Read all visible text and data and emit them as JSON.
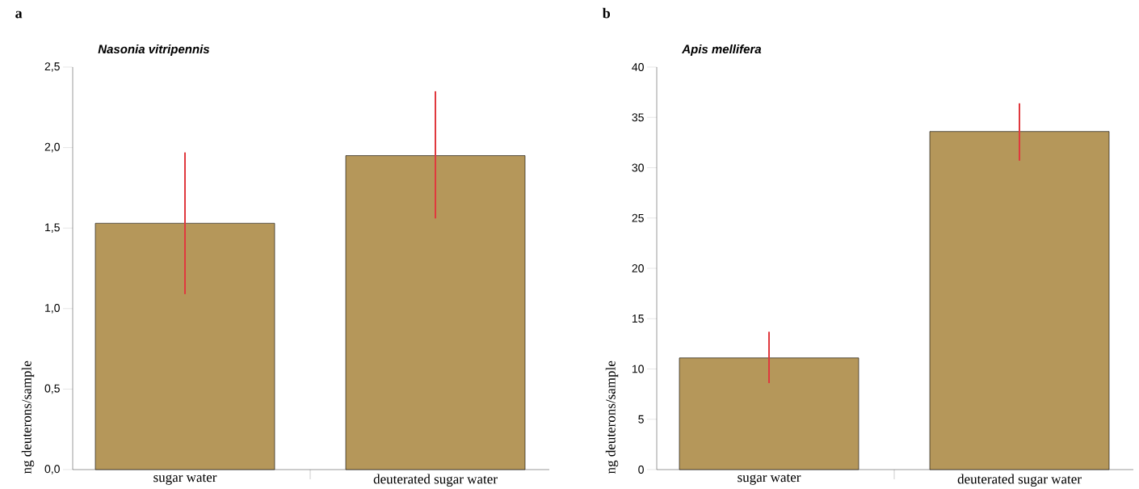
{
  "chart_data": [
    {
      "type": "bar",
      "title": "Nasonia vitripennis",
      "ylabel": "ng deuterons/sample",
      "categories": [
        "sugar water",
        "deuterated sugar water"
      ],
      "values": [
        1.53,
        1.95
      ],
      "errors": [
        [
          1.09,
          1.97
        ],
        [
          1.56,
          2.35
        ]
      ],
      "color": "#b5975a",
      "ylim": [
        0,
        2.5
      ],
      "yticks": [
        {
          "value": 0,
          "label": "0,0"
        },
        {
          "value": 0.5,
          "label": "0,5"
        },
        {
          "value": 1.0,
          "label": "1,0"
        },
        {
          "value": 1.5,
          "label": "1,5"
        },
        {
          "value": 2.0,
          "label": "2,0"
        },
        {
          "value": 2.5,
          "label": "2,5"
        }
      ],
      "annotations": [
        "a"
      ]
    },
    {
      "type": "bar",
      "title": "Apis mellifera",
      "ylabel": "ng deuterons/sample",
      "categories": [
        "sugar water",
        "deuterated sugar water"
      ],
      "values": [
        11.1,
        33.6
      ],
      "errors": [
        [
          8.6,
          13.7
        ],
        [
          30.7,
          36.4
        ]
      ],
      "color": "#b5975a",
      "ylim": [
        0,
        40
      ],
      "yticks": [
        0,
        5,
        10,
        15,
        20,
        25,
        30,
        35,
        40
      ],
      "annotations": [
        "b"
      ]
    }
  ]
}
